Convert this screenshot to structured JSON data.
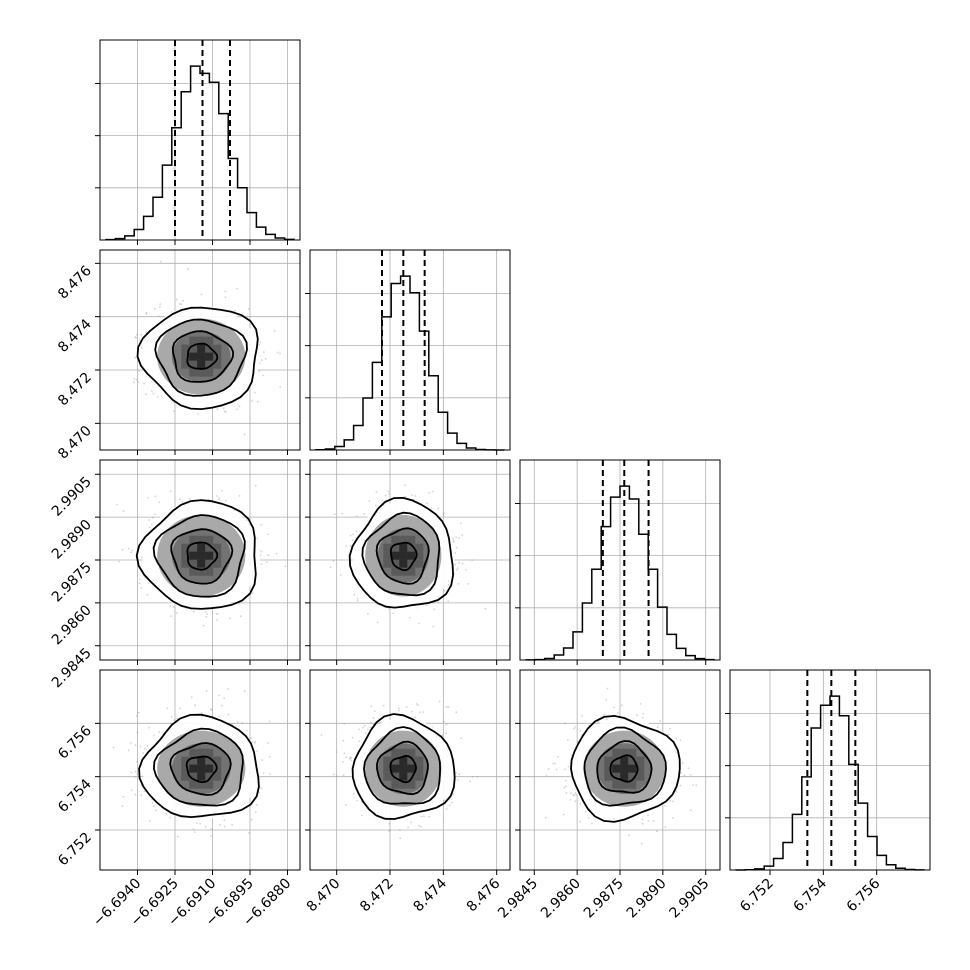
{
  "chart_data": {
    "type": "corner",
    "parameters": [
      {
        "ticks": [
          -6.694,
          -6.6925,
          -6.691,
          -6.6895,
          -6.688
        ],
        "tick_labels": [
          "−6.6940",
          "−6.6925",
          "−6.6910",
          "−6.6895",
          "−6.6880"
        ],
        "range": [
          -6.6955,
          -6.6875
        ],
        "mean": -6.69145,
        "std": 0.00105,
        "quantiles": [
          -6.6925,
          -6.6914,
          -6.6903
        ]
      },
      {
        "ticks": [
          8.47,
          8.472,
          8.474,
          8.476
        ],
        "tick_labels": [
          "8.470",
          "8.472",
          "8.474",
          "8.476"
        ],
        "range": [
          8.469,
          8.4765
        ],
        "mean": 8.4725,
        "std": 0.00085,
        "quantiles": [
          8.4717,
          8.4725,
          8.4733
        ]
      },
      {
        "ticks": [
          2.9845,
          2.986,
          2.9875,
          2.989,
          2.9905
        ],
        "tick_labels": [
          "2.9845",
          "2.9860",
          "2.9875",
          "2.9890",
          "2.9905"
        ],
        "range": [
          2.984,
          2.991
        ],
        "mean": 2.98765,
        "std": 0.00085,
        "quantiles": [
          2.9869,
          2.98765,
          2.9885
        ]
      },
      {
        "ticks": [
          6.752,
          6.754,
          6.756
        ],
        "tick_labels": [
          "6.752",
          "6.754",
          "6.756"
        ],
        "range": [
          6.7505,
          6.758
        ],
        "mean": 6.7543,
        "std": 0.00085,
        "quantiles": [
          6.7534,
          6.7543,
          6.7552
        ]
      }
    ],
    "hist_bins": 20,
    "hist_ymax": 1.15,
    "hist_yticks": [
      0.3,
      0.6,
      0.9
    ],
    "contour_levels_sigma": [
      0.5,
      1.0,
      1.5,
      2.0
    ],
    "grid": true,
    "scatter_points_per_panel": 900
  }
}
